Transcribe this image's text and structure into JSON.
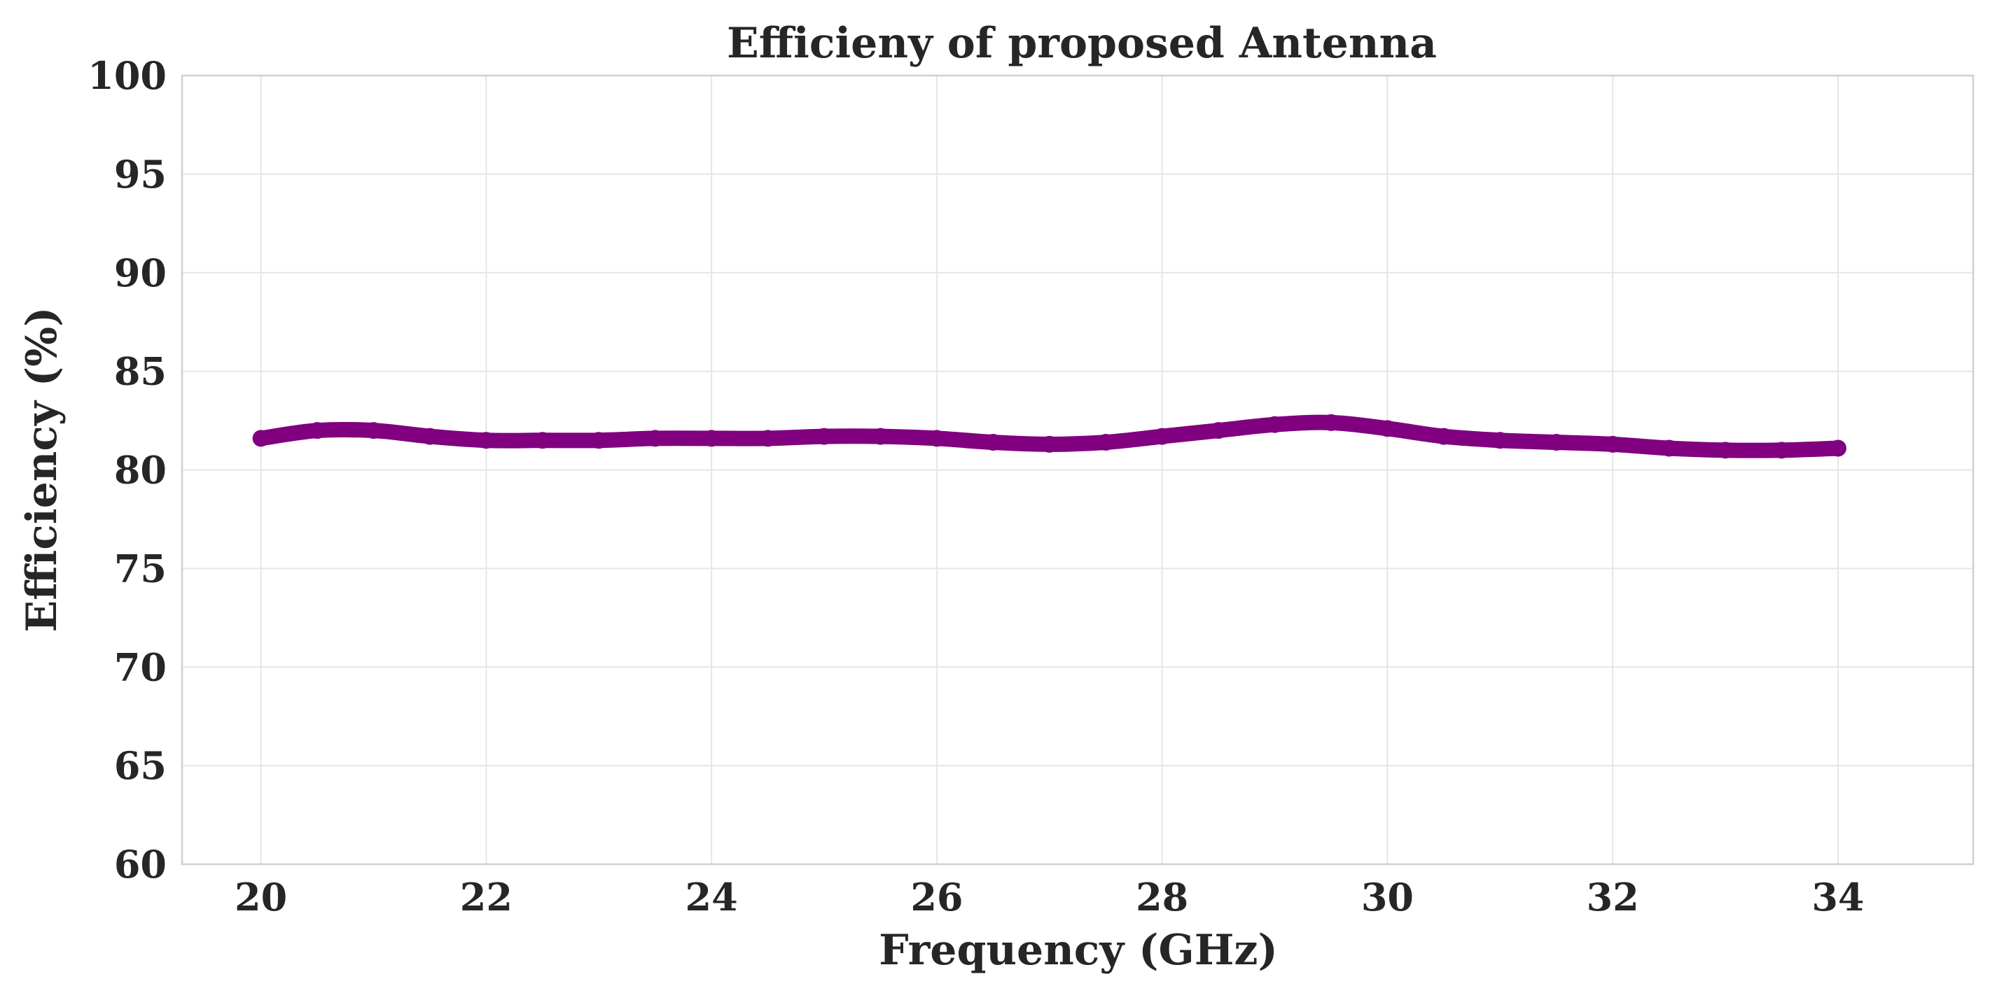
{
  "chart_data": {
    "type": "line",
    "title": "Efficieny of proposed Antenna",
    "xlabel": "Frequency (GHz)",
    "ylabel": "Efficiency (%)",
    "xlim": [
      19.3,
      35.2
    ],
    "ylim": [
      60,
      100
    ],
    "xticks": [
      20,
      22,
      24,
      26,
      28,
      30,
      32,
      34
    ],
    "yticks": [
      60,
      65,
      70,
      75,
      80,
      85,
      90,
      95,
      100
    ],
    "grid": true,
    "series": [
      {
        "name": "Efficiency",
        "color": "#800080",
        "marker": "circle",
        "x": [
          20.0,
          20.5,
          21.0,
          21.5,
          22.0,
          22.5,
          23.0,
          23.5,
          24.0,
          24.5,
          25.0,
          25.5,
          26.0,
          26.5,
          27.0,
          27.5,
          28.0,
          28.5,
          29.0,
          29.5,
          30.0,
          30.5,
          31.0,
          31.5,
          32.0,
          32.5,
          33.0,
          33.5,
          34.0
        ],
        "values": [
          81.6,
          82.0,
          82.0,
          81.7,
          81.5,
          81.5,
          81.5,
          81.6,
          81.6,
          81.6,
          81.7,
          81.7,
          81.6,
          81.4,
          81.3,
          81.4,
          81.7,
          82.0,
          82.3,
          82.4,
          82.1,
          81.7,
          81.5,
          81.4,
          81.3,
          81.1,
          81.0,
          81.0,
          81.1
        ]
      }
    ]
  }
}
